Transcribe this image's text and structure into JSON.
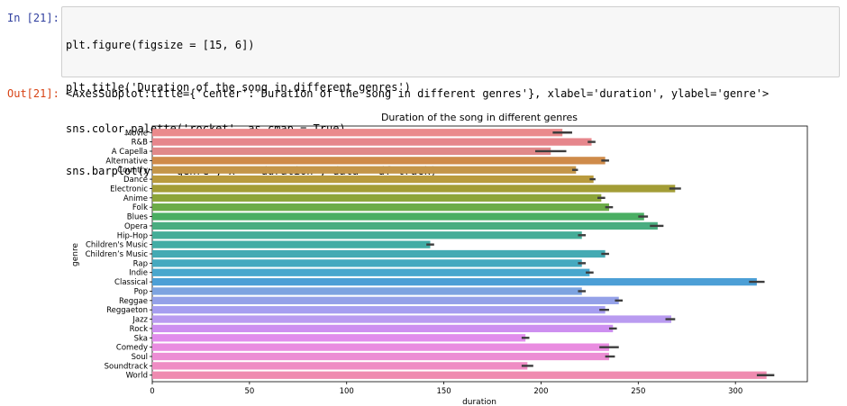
{
  "notebook": {
    "in_prompt": "In [21]:",
    "out_prompt": "Out[21]:",
    "code": [
      "plt.figure(figsize = [15, 6])",
      "plt.title('Duration of the song in different genres')",
      "sns.color_palette('rocket', as_cmap = True)",
      "sns.barplot(y = 'genre', x = 'duration', data = df_track)"
    ],
    "output": "<AxesSubplot:title={'center':'Duration of the song in different genres'}, xlabel='duration', ylabel='genre'>"
  },
  "chart_data": {
    "type": "bar",
    "orientation": "horizontal",
    "title": "Duration of the song in different genres",
    "xlabel": "duration",
    "ylabel": "genre",
    "xlim": [
      0,
      337
    ],
    "xticks": [
      0,
      50,
      100,
      150,
      200,
      250,
      300
    ],
    "grid": false,
    "categories": [
      "Movie",
      "R&B",
      "A Capella",
      "Alternative",
      "Country",
      "Dance",
      "Electronic",
      "Anime",
      "Folk",
      "Blues",
      "Opera",
      "Hip-Hop",
      "Children's Music",
      "Children’s Music",
      "Rap",
      "Indie",
      "Classical",
      "Pop",
      "Reggae",
      "Reggaeton",
      "Jazz",
      "Rock",
      "Ska",
      "Comedy",
      "Soul",
      "Soundtrack",
      "World"
    ],
    "values": [
      211,
      226,
      205,
      233,
      218,
      227,
      269,
      231,
      235,
      253,
      260,
      221,
      143,
      233,
      221,
      225,
      311,
      221,
      240,
      233,
      267,
      237,
      192,
      235,
      235,
      193,
      316
    ],
    "ci_low": [
      206,
      224,
      197,
      231,
      216,
      225,
      266,
      229,
      233,
      250,
      256,
      219,
      141,
      231,
      219,
      223,
      307,
      219,
      238,
      230,
      264,
      235,
      190,
      230,
      233,
      190,
      311
    ],
    "ci_high": [
      216,
      228,
      213,
      235,
      219,
      228,
      272,
      233,
      237,
      255,
      263,
      223,
      145,
      235,
      223,
      227,
      315,
      223,
      242,
      235,
      269,
      239,
      194,
      240,
      238,
      196,
      320
    ],
    "colors": [
      "#ea8a8c",
      "#e6868c",
      "#e0898a",
      "#cf8b4a",
      "#c4964a",
      "#b99b3e",
      "#a39d36",
      "#8da53a",
      "#6cac48",
      "#4aae63",
      "#4aad80",
      "#45ad98",
      "#42aca5",
      "#44aab3",
      "#45a9bf",
      "#48a7cd",
      "#4c9fd6",
      "#7da3e0",
      "#94a1e8",
      "#a69ef0",
      "#b99bf0",
      "#cd8ff0",
      "#e18dec",
      "#e98ce0",
      "#ec8ed4",
      "#ef8cc4",
      "#ef8bb0"
    ]
  }
}
